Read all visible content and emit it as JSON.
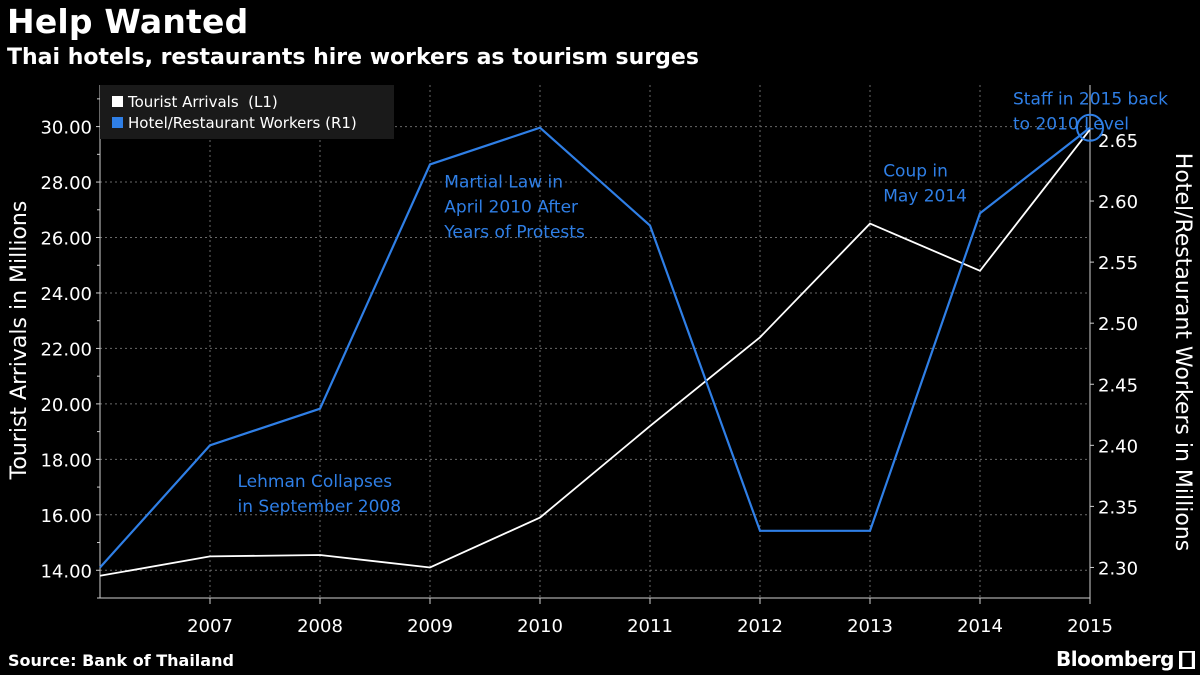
{
  "title": "Help Wanted",
  "subtitle": "Thai hotels, restaurants hire workers as tourism surges",
  "source": "Source: Bank of Thailand",
  "brand": "Bloomberg",
  "colors": {
    "background": "#000000",
    "tourist": "#ffffff",
    "workers": "#2f7fe6",
    "grid": "#6a6a6a",
    "axis": "#cfcfcf"
  },
  "chart_data": {
    "type": "line",
    "x": [
      "2006",
      "2007",
      "2008",
      "2009",
      "2010",
      "2011",
      "2012",
      "2013",
      "2014",
      "2015"
    ],
    "x_tick_labels": [
      "2007",
      "2008",
      "2009",
      "2010",
      "2011",
      "2012",
      "2013",
      "2014",
      "2015"
    ],
    "series": [
      {
        "name": "Tourist Arrivals  (L1)",
        "axis": "left",
        "color": "#ffffff",
        "values": [
          13.8,
          14.5,
          14.55,
          14.1,
          15.9,
          19.2,
          22.4,
          26.5,
          24.8,
          29.9
        ]
      },
      {
        "name": "Hotel/Restaurant Workers (R1)",
        "axis": "right",
        "color": "#2f7fe6",
        "values": [
          2.3,
          2.4,
          2.43,
          2.63,
          2.66,
          2.58,
          2.33,
          2.33,
          2.59,
          2.66
        ]
      }
    ],
    "ylabel_left": "Tourist Arrivals in Millions",
    "ylabel_right": "Hotel/Restaurant Workers in Millions",
    "ylim_left": [
      13,
      31.5
    ],
    "ylim_right": [
      2.275,
      2.695
    ],
    "yticks_left": [
      "14.00",
      "16.00",
      "18.00",
      "20.00",
      "22.00",
      "24.00",
      "26.00",
      "28.00",
      "30.00"
    ],
    "yticks_right": [
      "2.30",
      "2.35",
      "2.40",
      "2.45",
      "2.50",
      "2.55",
      "2.60",
      "2.65"
    ],
    "grid": true,
    "legend_position": "top-left",
    "annotations": [
      {
        "id": "lehman",
        "lines": [
          "Lehman Collapses",
          "in September 2008"
        ],
        "x": "2007.25",
        "y_left": 17.0
      },
      {
        "id": "martial",
        "lines": [
          "Martial Law in",
          "April 2010 After",
          "Years of Protests"
        ],
        "x": "2009.13",
        "y_left": 27.8
      },
      {
        "id": "coup",
        "lines": [
          "Coup in",
          "May 2014"
        ],
        "x": "2013.12",
        "y_left": 28.2
      },
      {
        "id": "staff",
        "lines": [
          "Staff in 2015 back",
          "to 2010 Level"
        ],
        "x": "2014.3",
        "y_left": 30.8
      }
    ],
    "highlight_marker": {
      "series": "Hotel/Restaurant Workers (R1)",
      "x": "2015",
      "shape": "circle"
    }
  }
}
